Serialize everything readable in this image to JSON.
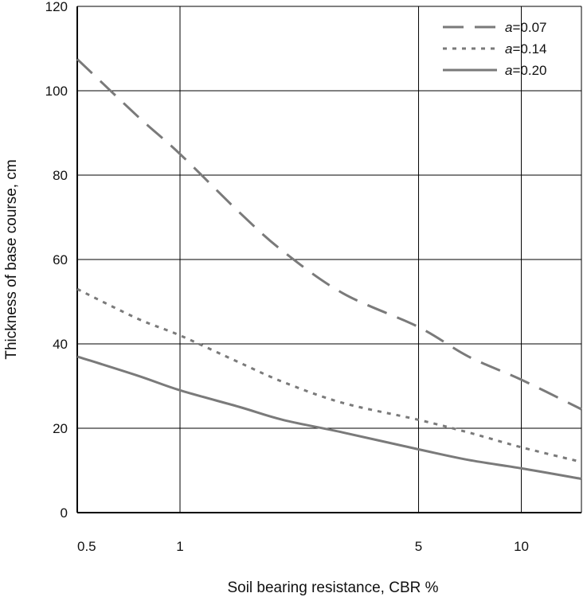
{
  "chart_data": {
    "type": "line",
    "xlabel": "Soil bearing resistance, CBR %",
    "ylabel": "Thickness of base course, cm",
    "x_scale": "log",
    "xlim": [
      0.5,
      15
    ],
    "ylim": [
      0,
      120
    ],
    "x_ticks": [
      0.5,
      1,
      5,
      10
    ],
    "x_tick_labels": [
      "0.5",
      "1",
      "5",
      "10"
    ],
    "y_ticks": [
      0,
      20,
      40,
      60,
      80,
      100,
      120
    ],
    "y_tick_labels": [
      "0",
      "20",
      "40",
      "60",
      "80",
      "100",
      "120"
    ],
    "grid": true,
    "legend_position": "top-right",
    "colors": {
      "series": "#7a7a7a",
      "grid": "#000000",
      "axis": "#000000"
    },
    "series": [
      {
        "name": "a=0.07",
        "name_italic": "a",
        "name_rest": "=0.07",
        "style": "dashed",
        "x": [
          0.5,
          0.75,
          1,
          1.5,
          2,
          3,
          5,
          7,
          10,
          15
        ],
        "y": [
          107.5,
          94,
          85,
          71,
          62,
          52,
          44,
          37,
          31.5,
          24.5
        ]
      },
      {
        "name": "a=0.14",
        "name_italic": "a",
        "name_rest": "=0.14",
        "style": "dotted",
        "x": [
          0.5,
          0.75,
          1,
          1.5,
          2,
          3,
          5,
          7,
          10,
          15
        ],
        "y": [
          53,
          46,
          42,
          35.5,
          31,
          26,
          22,
          19,
          15.5,
          12
        ]
      },
      {
        "name": "a=0.20",
        "name_italic": "a",
        "name_rest": "=0.20",
        "style": "solid",
        "x": [
          0.5,
          0.75,
          1,
          1.5,
          2,
          3,
          5,
          7,
          10,
          15
        ],
        "y": [
          37,
          32.5,
          29,
          25,
          22,
          19,
          15,
          12.5,
          10.5,
          8
        ]
      }
    ]
  }
}
